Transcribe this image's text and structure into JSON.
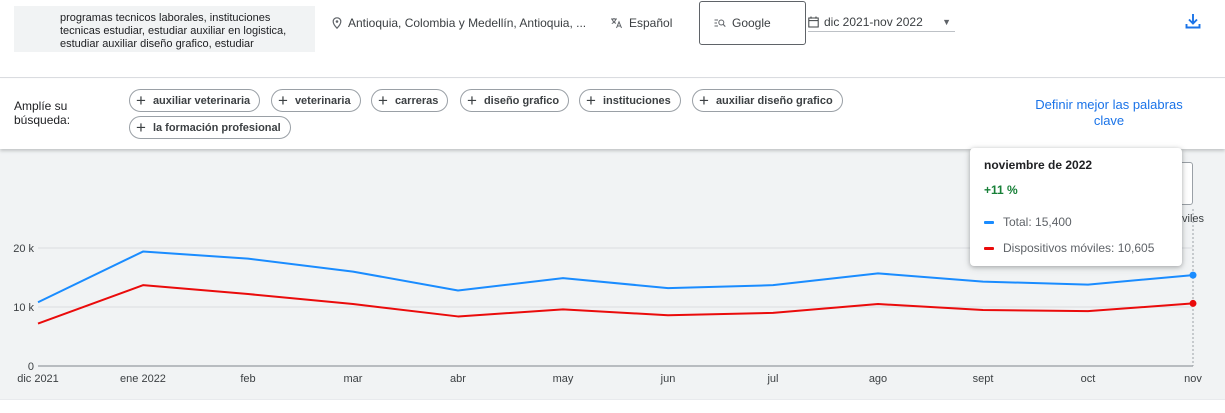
{
  "search": {
    "keywords": "programas tecnicos laborales, instituciones tecnicas estudiar, estudiar auxiliar en logistica, estudiar auxiliar diseño grafico, estudiar",
    "location": "Antioquia, Colombia y Medellín, Antioquia, ...",
    "language": "Español",
    "network": "Google",
    "date_range": "dic 2021-nov 2022"
  },
  "icons": {
    "location": "location-pin-icon",
    "language": "translate-icon",
    "network": "search-network-icon",
    "calendar": "calendar-icon",
    "dropdown": "dropdown-caret-icon",
    "download": "download-icon",
    "add": "plus-icon"
  },
  "broaden": {
    "label": "Amplíe su búsqueda:",
    "chips": [
      "auxiliar veterinaria",
      "veterinaria",
      "carreras",
      "diseño grafico",
      "instituciones",
      "auxiliar diseño grafico",
      "la formación profesional"
    ],
    "refine_link": "Definir mejor las palabras clave"
  },
  "tooltip": {
    "title": "noviembre de 2022",
    "change": "+11 %",
    "total": "Total: 15,400",
    "mobile": "Dispositivos móviles: 10,605"
  },
  "partial_text": "viles",
  "colors": {
    "total": "#1a8cff",
    "mobile": "#ea0b0b",
    "link": "#1a73e8",
    "positive": "#188038"
  },
  "chart_data": {
    "type": "line",
    "categories": [
      "dic 2021",
      "ene 2022",
      "feb",
      "mar",
      "abr",
      "may",
      "jun",
      "jul",
      "ago",
      "sept",
      "oct",
      "nov"
    ],
    "y_ticks": [
      "0",
      "10 k",
      "20 k"
    ],
    "ylim": [
      0,
      20000
    ],
    "grid": true,
    "series": [
      {
        "name": "Total",
        "color": "#1a8cff",
        "values": [
          10800,
          19400,
          18200,
          16000,
          12800,
          14900,
          13200,
          13700,
          15700,
          14300,
          13800,
          15400
        ]
      },
      {
        "name": "Dispositivos móviles",
        "color": "#ea0b0b",
        "values": [
          7200,
          13700,
          12200,
          10500,
          8400,
          9600,
          8600,
          9000,
          10500,
          9500,
          9300,
          10605
        ]
      }
    ]
  }
}
